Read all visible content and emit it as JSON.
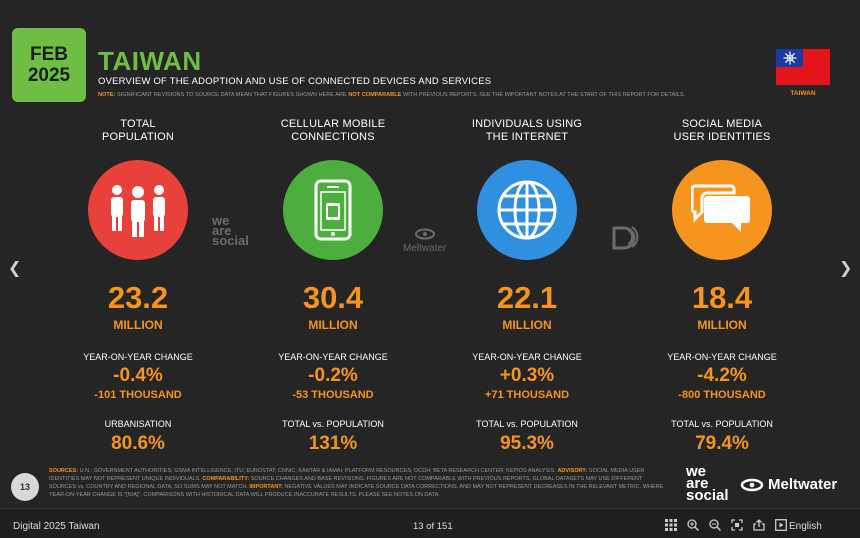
{
  "slide": {
    "date_month": "FEB",
    "date_year": "2025",
    "title": "TAIWAN",
    "subtitle": "OVERVIEW OF THE ADOPTION AND USE OF CONNECTED DEVICES AND SERVICES",
    "note_label": "NOTE:",
    "note_text_1": "SIGNIFICANT REVISIONS TO SOURCE DATA MEAN THAT FIGURES SHOWN HERE ARE",
    "note_emph": "NOT COMPARABLE",
    "note_text_2": "WITH PREVIOUS REPORTS. SEE THE IMPORTANT NOTES AT THE START OF THIS REPORT FOR DETAILS.",
    "flag_label": "TAIWAN",
    "colors": {
      "accent": "#f7941d",
      "brand_green": "#6fbe44",
      "red": "#e8403a",
      "green": "#4caf3d",
      "blue": "#2f8fe0",
      "orange": "#f7941d"
    },
    "columns": [
      {
        "title_1": "TOTAL",
        "title_2": "POPULATION",
        "icon": "people-icon",
        "value": "23.2",
        "unit": "MILLION",
        "change_label": "YEAR-ON-YEAR CHANGE",
        "change_pct": "-0.4%",
        "change_abs": "-101 THOUSAND",
        "extra_label": "URBANISATION",
        "extra_value": "80.6%"
      },
      {
        "title_1": "CELLULAR MOBILE",
        "title_2": "CONNECTIONS",
        "icon": "mobile-phone-icon",
        "value": "30.4",
        "unit": "MILLION",
        "change_label": "YEAR-ON-YEAR CHANGE",
        "change_pct": "-0.2%",
        "change_abs": "-53 THOUSAND",
        "extra_label": "TOTAL vs. POPULATION",
        "extra_value": "131%"
      },
      {
        "title_1": "INDIVIDUALS USING",
        "title_2": "THE INTERNET",
        "icon": "globe-icon",
        "value": "22.1",
        "unit": "MILLION",
        "change_label": "YEAR-ON-YEAR CHANGE",
        "change_pct": "+0.3%",
        "change_abs": "+71 THOUSAND",
        "extra_label": "TOTAL vs. POPULATION",
        "extra_value": "95.3%"
      },
      {
        "title_1": "SOCIAL MEDIA",
        "title_2": "USER IDENTITIES",
        "icon": "chat-bubbles-icon",
        "value": "18.4",
        "unit": "MILLION",
        "change_label": "YEAR-ON-YEAR CHANGE",
        "change_pct": "-4.2%",
        "change_abs": "-800 THOUSAND",
        "extra_label": "TOTAL vs. POPULATION",
        "extra_value": "79.4%"
      }
    ],
    "watermark_was": [
      "we",
      "are",
      "social"
    ],
    "watermark_mw": "Meltwater",
    "page_number": "13",
    "sources_label": "SOURCES:",
    "sources_text": "U.N.; GOVERNMENT AUTHORITIES; GSMA INTELLIGENCE; ITU; EUROSTAT; CNNIC; KANTAR & IAMAI; PLATFORM RESOURCES; OCDH; BETA RESEARCH CENTER; KEPIOS ANALYSIS.",
    "advisory_label": "ADVISORY:",
    "advisory_text": "SOCIAL MEDIA USER IDENTITIES MAY NOT REPRESENT UNIQUE INDIVIDUALS.",
    "comparability_label": "COMPARABILITY:",
    "comparability_text": "SOURCE CHANGES AND BASE REVISIONS. FIGURES ARE NOT COMPARABLE WITH PREVIOUS REPORTS. GLOBAL DATASETS MAY USE DIFFERENT SOURCES vs. COUNTRY AND REGIONAL DATA, SO SUMS MAY NOT MATCH.",
    "important_label": "IMPORTANT:",
    "important_text": "NEGATIVE VALUES MAY INDICATE SOURCE DATA CORRECTIONS, AND MAY NOT REPRESENT DECREASES IN THE RELEVANT METRIC. WHERE YEAR-ON-YEAR CHANGE IS \"[N/A]\", COMPARISONS WITH HISTORICAL DATA WILL PRODUCE INACCURATE RESULTS. PLEASE SEE NOTES ON DATA.",
    "logo_was": [
      "we",
      "are",
      "social"
    ],
    "logo_mw": "Meltwater"
  },
  "viewer": {
    "document_title": "Digital 2025 Taiwan",
    "page_indicator": "13 of 151",
    "language": "English",
    "tools": [
      "grid-view-icon",
      "zoom-in-icon",
      "zoom-out-icon",
      "fullscreen-icon",
      "share-icon",
      "present-icon"
    ]
  }
}
